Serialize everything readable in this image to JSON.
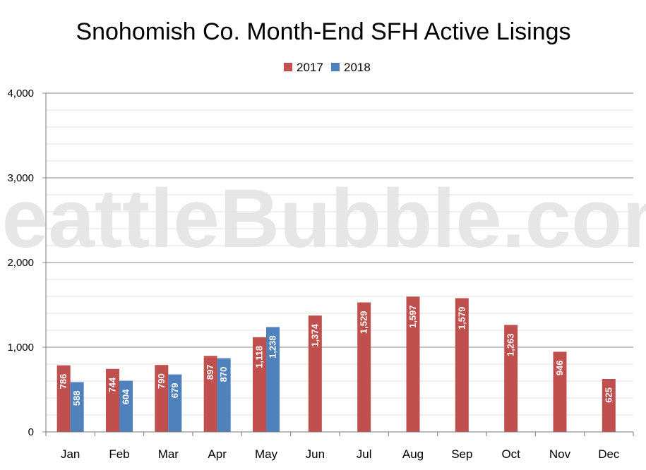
{
  "colors": {
    "s2017": "#c0504d",
    "s2018": "#4f81bd",
    "grid_major": "#888888",
    "grid_minor": "#e2e2e2"
  },
  "watermark": "SeattleBubble.com",
  "chart_data": {
    "type": "bar",
    "title": "Snohomish Co. Month-End SFH Active Lisings",
    "xlabel": "",
    "ylabel": "",
    "ylim": [
      0,
      4000
    ],
    "yticks": [
      0,
      1000,
      2000,
      3000,
      4000
    ],
    "ytick_labels": [
      "0",
      "1,000",
      "2,000",
      "3,000",
      "4,000"
    ],
    "grid": true,
    "legend_position": "top-center",
    "categories": [
      "Jan",
      "Feb",
      "Mar",
      "Apr",
      "May",
      "Jun",
      "Jul",
      "Aug",
      "Sep",
      "Oct",
      "Nov",
      "Dec"
    ],
    "series": [
      {
        "name": "2017",
        "values": [
          786,
          744,
          790,
          897,
          1118,
          1374,
          1529,
          1597,
          1579,
          1263,
          946,
          625
        ]
      },
      {
        "name": "2018",
        "values": [
          588,
          604,
          679,
          870,
          1238,
          null,
          null,
          null,
          null,
          null,
          null,
          null
        ]
      }
    ]
  }
}
